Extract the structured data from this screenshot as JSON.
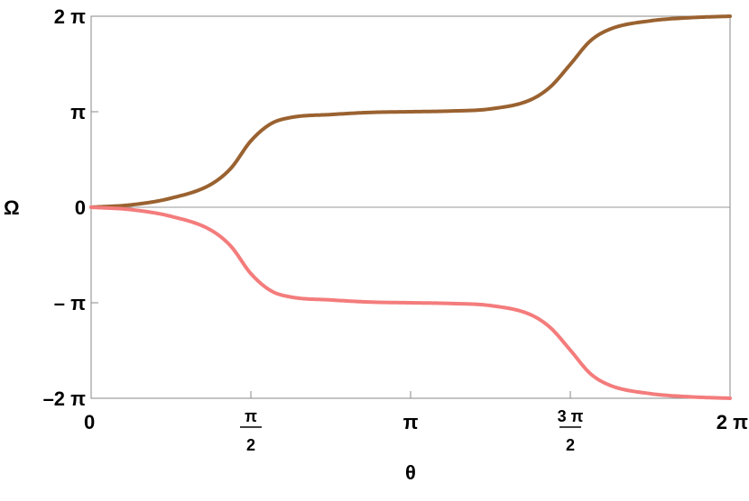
{
  "chart_data": {
    "type": "line",
    "title": "",
    "xlabel": "θ",
    "ylabel": "Ω",
    "xlim": [
      0,
      6.283185307
    ],
    "ylim": [
      -6.283185307,
      6.283185307
    ],
    "grid": false,
    "x_ticks": [
      {
        "value": 0,
        "label": "0"
      },
      {
        "value": 1.570796327,
        "num": "π",
        "den": "2"
      },
      {
        "value": 3.141592654,
        "label": "π"
      },
      {
        "value": 4.71238898,
        "num": "3 π",
        "den": "2"
      },
      {
        "value": 6.283185307,
        "label": "2 π"
      }
    ],
    "y_ticks": [
      {
        "value": 6.283185307,
        "label": "2 π"
      },
      {
        "value": 3.141592654,
        "label": "π"
      },
      {
        "value": 0,
        "label": "0"
      },
      {
        "value": -3.141592654,
        "label": "– π"
      },
      {
        "value": -6.283185307,
        "label": "–2 π"
      }
    ],
    "series": [
      {
        "color": "#9a6230",
        "x": [
          0,
          0.3927,
          0.7854,
          1.1781,
          1.3744,
          1.5708,
          1.7671,
          1.9635,
          2.3562,
          2.7489,
          3.1416,
          3.5343,
          3.927,
          4.3197,
          4.516,
          4.7124,
          4.9087,
          5.1051,
          5.4978,
          5.8905,
          6.2832
        ],
        "y": [
          0,
          0.079,
          0.299,
          0.753,
          1.283,
          2.182,
          2.745,
          2.952,
          3.049,
          3.119,
          3.142,
          3.165,
          3.235,
          3.531,
          3.96,
          4.7,
          5.47,
          5.86,
          6.13,
          6.235,
          6.283
        ]
      },
      {
        "color": "#f47c7c",
        "x": [
          0,
          0.3927,
          0.7854,
          1.1781,
          1.3744,
          1.5708,
          1.7671,
          1.9635,
          2.3562,
          2.7489,
          3.1416,
          3.5343,
          3.927,
          4.3197,
          4.516,
          4.7124,
          4.9087,
          5.1051,
          5.4978,
          5.8905,
          6.2832
        ],
        "y": [
          0,
          -0.079,
          -0.299,
          -0.753,
          -1.283,
          -2.182,
          -2.745,
          -2.952,
          -3.049,
          -3.119,
          -3.142,
          -3.165,
          -3.235,
          -3.531,
          -3.96,
          -4.7,
          -5.47,
          -5.86,
          -6.13,
          -6.235,
          -6.283
        ]
      }
    ]
  }
}
